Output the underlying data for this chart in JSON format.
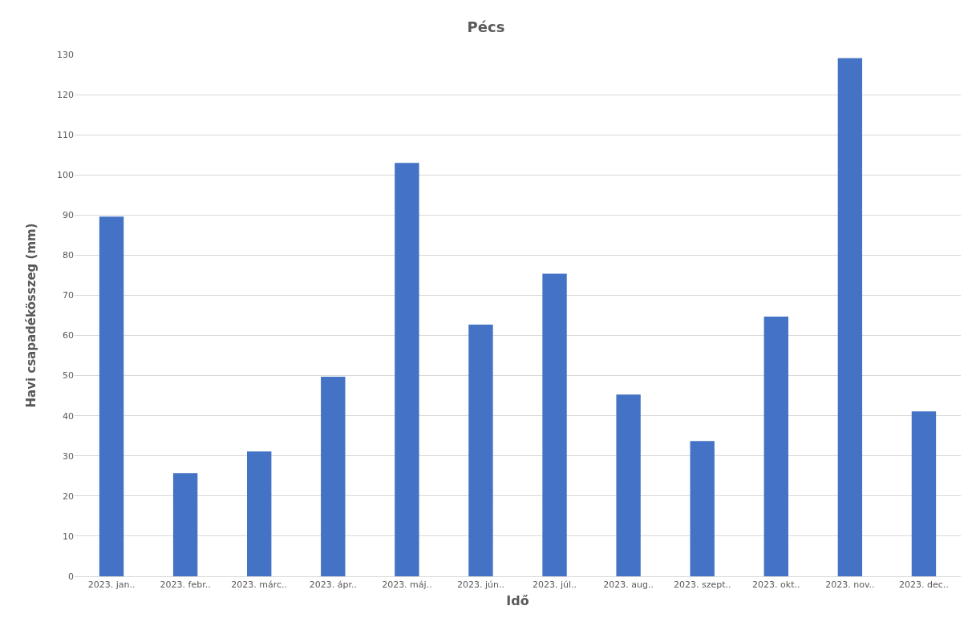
{
  "chart_data": {
    "type": "bar",
    "title": "Pécs",
    "xlabel": "Idő",
    "ylabel": "Havi csapadékösszeg (mm)",
    "categories": [
      "2023. jan..",
      "2023. febr..",
      "2023. márc..",
      "2023. ápr..",
      "2023. máj..",
      "2023. jún..",
      "2023. júl..",
      "2023. aug..",
      "2023. szept..",
      "2023. okt..",
      "2023. nov..",
      "2023. dec.."
    ],
    "values": [
      89.6,
      25.7,
      31.1,
      49.7,
      103,
      62.7,
      75.4,
      45.3,
      33.7,
      64.7,
      129.1,
      41.1
    ],
    "color": "#4472c4",
    "ylim": [
      0,
      130
    ],
    "yticks": [
      0,
      10,
      20,
      30,
      40,
      50,
      60,
      70,
      80,
      90,
      100,
      110,
      120,
      130
    ],
    "grid": "y",
    "legend": false
  }
}
